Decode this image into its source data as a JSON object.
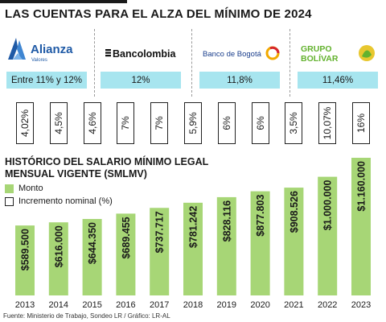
{
  "header": {
    "title": "LAS CUENTAS PARA EL ALZA DEL MÍNIMO DE 2024"
  },
  "banks": [
    {
      "name": "Alianza",
      "sub": "Valores",
      "rate": "Entre 11% y 12%"
    },
    {
      "name": "Bancolombia",
      "rate": "12%"
    },
    {
      "name": "Banco de Bogotá",
      "rate": "11,8%"
    },
    {
      "name_line1": "GRUPO",
      "name_line2": "BOLÍVAR",
      "rate": "11,46%"
    }
  ],
  "increments": [
    "4,02%",
    "4,5%",
    "4,6%",
    "7%",
    "7%",
    "5,9%",
    "6%",
    "6%",
    "3,5%",
    "10,07%",
    "16%"
  ],
  "section": {
    "title": "HISTÓRICO DEL SALARIO MÍNIMO LEGAL MENSUAL VIGENTE (SMLMV)"
  },
  "legend": {
    "monto": "Monto",
    "incremento": "Incremento nominal (%)"
  },
  "source": "Fuente: Ministerio de Trabajo, Sondeo LR / Gráfico: LR-AL",
  "colors": {
    "bar": "#a7d676",
    "rate_box": "#a7e5ef",
    "alianza": "#1f5aa6",
    "bogota_red": "#d6262e",
    "bogota_yellow": "#f2a900",
    "bolivar_green": "#63b22e"
  },
  "chart_data": {
    "type": "bar",
    "categories": [
      "2013",
      "2014",
      "2015",
      "2016",
      "2017",
      "2018",
      "2019",
      "2020",
      "2021",
      "2022",
      "2023"
    ],
    "series": [
      {
        "name": "Monto",
        "values": [
          589500,
          616000,
          644350,
          689455,
          737717,
          781242,
          828116,
          877803,
          908526,
          1000000,
          1160000
        ]
      }
    ],
    "labels": [
      "$589.500",
      "$616.000",
      "$644.350",
      "$689.455",
      "$737.717",
      "$781.242",
      "$828.116",
      "$877.803",
      "$908.526",
      "$1.000.000",
      "$1.160.000"
    ],
    "ylim": [
      0,
      1160000
    ],
    "grid": false,
    "legend": "top-left"
  }
}
